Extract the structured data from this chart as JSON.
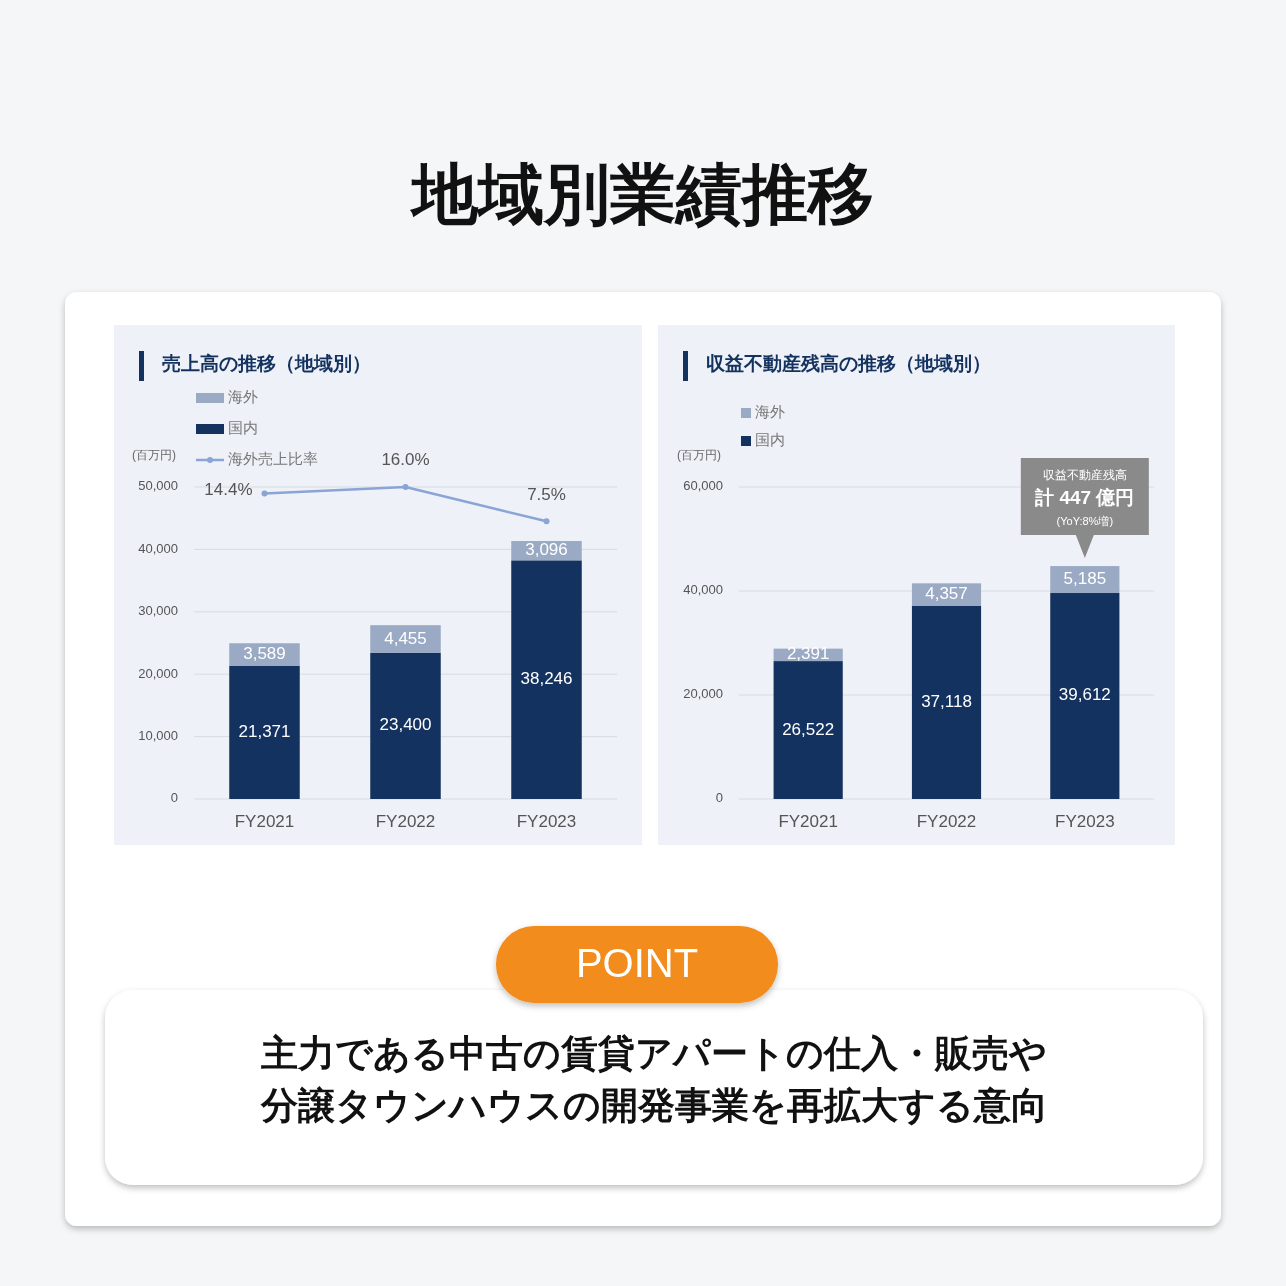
{
  "chart_data": [
    {
      "type": "other",
      "title": "地域別業績推移"
    },
    {
      "type": "bar",
      "title": "売上高の推移（地域別）",
      "categories": [
        "FY2021",
        "FY2022",
        "FY2023"
      ],
      "stacked": true,
      "ylabel": "(百万円)",
      "ylim": [
        0,
        50000
      ],
      "yticks": [
        0,
        {
          "value": 10000,
          "label": "10,000"
        },
        {
          "value": 20000,
          "label": "20,000"
        },
        {
          "value": 30000,
          "label": "30,000"
        },
        {
          "value": 40000,
          "label": "40,000"
        },
        {
          "value": 50000,
          "label": "50,000"
        }
      ],
      "y2lim": [
        -61.3,
        16.0
      ],
      "grid": "y",
      "legend": "top left",
      "series": [
        {
          "name": "国内",
          "color": "#14325f",
          "values": [
            21371,
            23400,
            38246
          ],
          "value_labels": [
            "21,371",
            "23,400",
            "38,246"
          ]
        },
        {
          "name": "海外",
          "color": "#9aaac4",
          "values": [
            3589,
            4455,
            3096
          ],
          "value_labels": [
            "3,589",
            "4,455",
            "3,096"
          ]
        },
        {
          "name": "海外売上比率",
          "type": "line",
          "axis": "y2",
          "marker": "circle",
          "color": "#8aa4d6",
          "values": [
            14.4,
            16.0,
            7.5
          ],
          "value_labels": [
            "14.4%",
            "16.0%",
            "7.5%"
          ]
        }
      ]
    },
    {
      "type": "bar",
      "title": "収益不動産残高の推移（地域別）",
      "categories": [
        "FY2021",
        "FY2022",
        "FY2023"
      ],
      "stacked": true,
      "ylabel": "(百万円)",
      "ylim": [
        0,
        60000
      ],
      "yticks": [
        0,
        {
          "value": 20000,
          "label": "20,000"
        },
        {
          "value": 40000,
          "label": "40,000"
        },
        {
          "value": 60000,
          "label": "60,000"
        }
      ],
      "grid": "y",
      "legend": "top left",
      "annotations": [
        "収益不動産残高",
        "計 447 億円",
        "(YoY:8%増)"
      ],
      "series": [
        {
          "name": "国内",
          "color": "#14325f",
          "values": [
            26522,
            37118,
            39612
          ],
          "value_labels": [
            "26,522",
            "37,118",
            "39,612"
          ]
        },
        {
          "name": "海外",
          "color": "#9aaac4",
          "values": [
            2391,
            4357,
            5185
          ],
          "value_labels": [
            "2,391",
            "4,357",
            "5,185"
          ]
        }
      ]
    },
    {
      "type": "other",
      "title": "POINT",
      "annotations": [
        "主力である中古の賃貸アパートの仕入・販売や",
        "分譲タウンハウスの開発事業を再拡大する意向"
      ]
    }
  ]
}
